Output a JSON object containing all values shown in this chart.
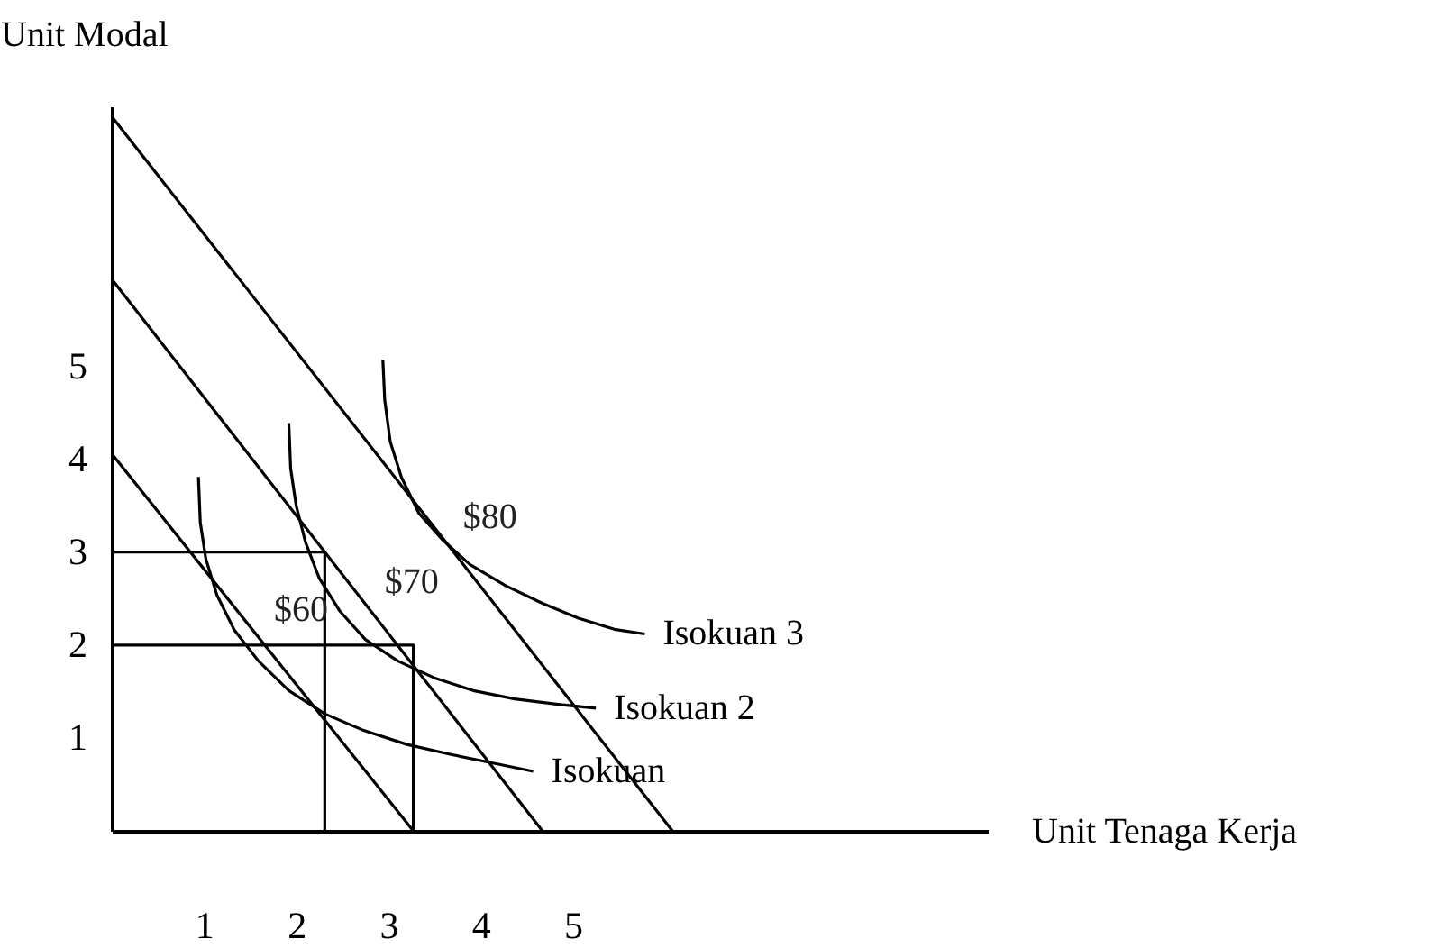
{
  "chart_data": {
    "type": "line",
    "xlabel": "Unit Tenaga Kerja",
    "ylabel": "Unit Modal",
    "xlim": [
      0,
      9.5
    ],
    "ylim": [
      0,
      7.8
    ],
    "xticks": [
      1,
      2,
      3,
      4,
      5
    ],
    "yticks": [
      1,
      2,
      3,
      4,
      5
    ],
    "grid": false,
    "legend": false,
    "marker": "none",
    "line_style": "solid",
    "series": [
      {
        "type": "line",
        "color": "#000000",
        "x": [
          0,
          3.27
        ],
        "values": [
          4.06,
          0
        ]
      },
      {
        "type": "line",
        "color": "#000000",
        "x": [
          0,
          4.67
        ],
        "values": [
          5.94,
          0
        ]
      },
      {
        "type": "line",
        "color": "#000000",
        "x": [
          0,
          6.08
        ],
        "values": [
          7.69,
          0
        ]
      },
      {
        "type": "line",
        "color": "#000000",
        "x": [
          0,
          2.31,
          2.31
        ],
        "values": [
          3,
          3,
          0
        ]
      },
      {
        "type": "line",
        "color": "#000000",
        "x": [
          0,
          3.27,
          3.27
        ],
        "values": [
          2,
          2,
          0
        ]
      },
      {
        "type": "line",
        "name": "Isokuan",
        "color": "#000000",
        "x": [
          0.94,
          0.96,
          1.02,
          1.14,
          1.33,
          1.59,
          1.92,
          2.31,
          2.71,
          3.2,
          3.69,
          4.18,
          4.57
        ],
        "values": [
          3.81,
          3.32,
          2.93,
          2.54,
          2.16,
          1.83,
          1.51,
          1.26,
          1.09,
          0.93,
          0.82,
          0.72,
          0.64
        ]
      },
      {
        "type": "line",
        "name": "Isokuan 2",
        "color": "#000000",
        "x": [
          1.92,
          1.94,
          2.0,
          2.1,
          2.25,
          2.47,
          2.75,
          3.1,
          3.49,
          3.92,
          4.37,
          4.86,
          5.25
        ],
        "values": [
          4.39,
          3.9,
          3.5,
          3.11,
          2.72,
          2.37,
          2.06,
          1.83,
          1.65,
          1.51,
          1.42,
          1.36,
          1.32
        ]
      },
      {
        "type": "line",
        "name": "Isokuan 3",
        "color": "#000000",
        "x": [
          2.94,
          2.96,
          3.02,
          3.14,
          3.33,
          3.59,
          3.88,
          4.27,
          4.67,
          5.06,
          5.45,
          5.78
        ],
        "values": [
          5.07,
          4.64,
          4.19,
          3.81,
          3.42,
          3.13,
          2.87,
          2.64,
          2.45,
          2.29,
          2.17,
          2.12
        ]
      }
    ],
    "annotations": [
      {
        "text": "$60",
        "x": 1.7,
        "y": 1.95
      },
      {
        "text": "$70",
        "x": 2.9,
        "y": 2.25
      },
      {
        "text": "$80",
        "x": 3.75,
        "y": 2.95
      }
    ]
  }
}
